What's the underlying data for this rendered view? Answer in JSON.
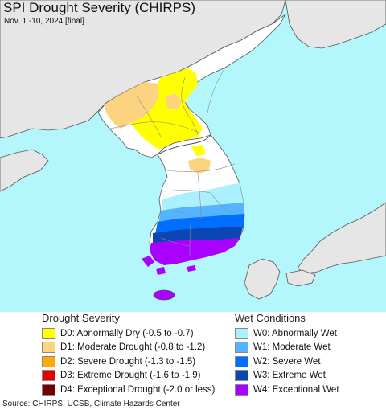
{
  "header": {
    "title": "SPI Drought Severity (CHIRPS)",
    "subtitle": "Nov. 1 -10, 2024 [final]"
  },
  "colors": {
    "water": "#b3f7fc",
    "land_outside": "#e6e6e6",
    "land_normal": "#ffffff",
    "border": "#555555",
    "river": "#8c8c8c",
    "d0": "#ffff00",
    "d1": "#fcd37f",
    "d2": "#ffaa00",
    "d3": "#e60000",
    "d4": "#730000",
    "w0": "#aaf0ff",
    "w1": "#54b4ff",
    "w2": "#006eff",
    "w3": "#0c46b3",
    "w4": "#aa00ff"
  },
  "legend": {
    "drought_title": "Drought Severity",
    "drought_items": [
      {
        "code": "d0",
        "label": "D0: Abnormally Dry (-0.5 to -0.7)"
      },
      {
        "code": "d1",
        "label": "D1: Moderate Drought (-0.8 to -1.2)"
      },
      {
        "code": "d2",
        "label": "D2: Severe Drought (-1.3 to -1.5)"
      },
      {
        "code": "d3",
        "label": "D3: Extreme Drought (-1.6 to -1.9)"
      },
      {
        "code": "d4",
        "label": "D4: Exceptional Drought (-2.0 or less)"
      }
    ],
    "wet_title": "Wet Conditions",
    "wet_items": [
      {
        "code": "w0",
        "label": "W0: Abnormally Wet"
      },
      {
        "code": "w1",
        "label": "W1: Moderate Wet"
      },
      {
        "code": "w2",
        "label": "W2: Severe Wet"
      },
      {
        "code": "w3",
        "label": "W3: Extreme Wet"
      },
      {
        "code": "w4",
        "label": "W4: Exceptional Wet"
      }
    ]
  },
  "footer": {
    "source": "Source: CHIRPS, UCSB, Climate Hazards Center"
  }
}
